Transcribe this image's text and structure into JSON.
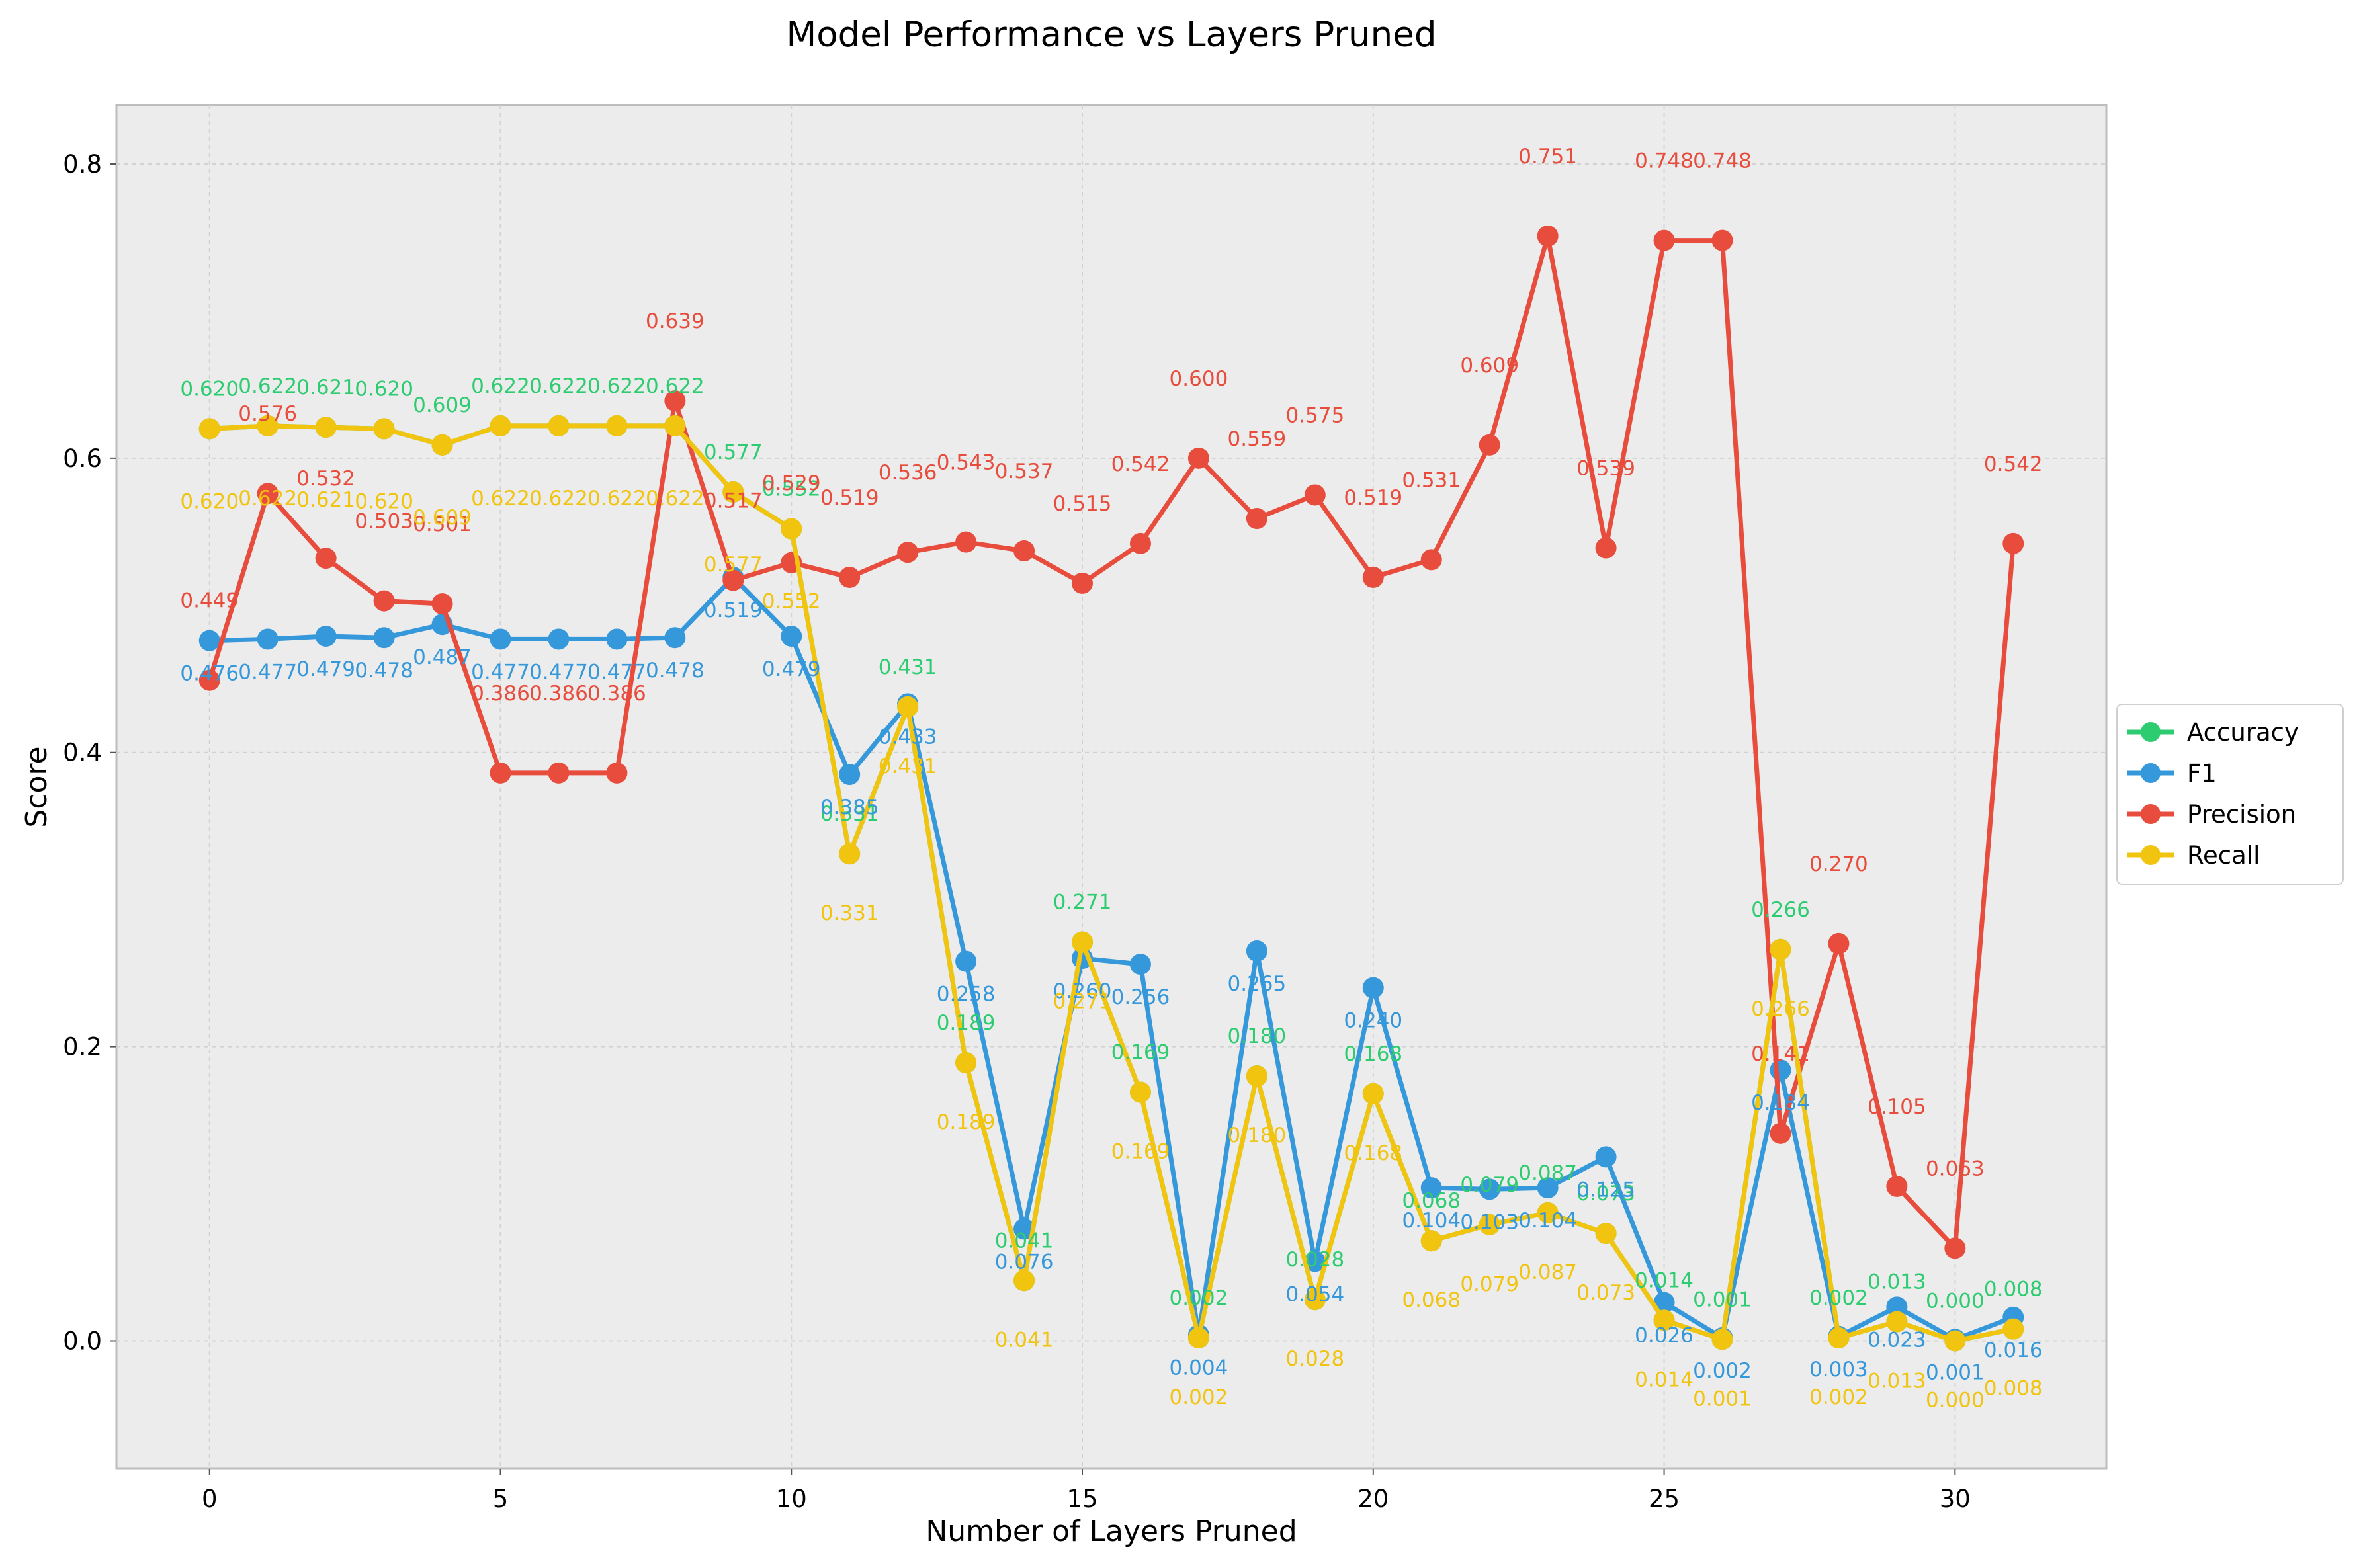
{
  "chart_data": {
    "type": "line",
    "title": "Model Performance vs Layers Pruned",
    "xlabel": "Number of Layers Pruned",
    "ylabel": "Score",
    "xlim": [
      -1.6,
      32.6
    ],
    "ylim": [
      -0.087,
      0.84
    ],
    "xticks": [
      0,
      5,
      10,
      15,
      20,
      25,
      30
    ],
    "yticks": [
      0.0,
      0.2,
      0.4,
      0.6,
      0.8
    ],
    "grid": true,
    "legend_position": "center-right-outside",
    "background": "#ececec",
    "x": [
      0,
      1,
      2,
      3,
      4,
      5,
      6,
      7,
      8,
      9,
      10,
      11,
      12,
      13,
      14,
      15,
      16,
      17,
      18,
      19,
      20,
      21,
      22,
      23,
      24,
      25,
      26,
      27,
      28,
      29,
      30,
      31
    ],
    "series": [
      {
        "name": "Accuracy",
        "color": "#2ecc71",
        "values": [
          0.62,
          0.622,
          0.621,
          0.62,
          0.609,
          0.622,
          0.622,
          0.622,
          0.622,
          0.577,
          0.552,
          0.331,
          0.431,
          0.189,
          0.041,
          0.271,
          0.169,
          0.002,
          0.18,
          0.028,
          0.168,
          0.068,
          0.079,
          0.087,
          0.073,
          0.014,
          0.001,
          0.266,
          0.002,
          0.013,
          0.0,
          0.008
        ],
        "labels": [
          "0.620",
          "0.622",
          "0.621",
          "0.620",
          "0.609",
          "0.622",
          "0.622",
          "0.622",
          "0.622",
          "0.577",
          "0.552",
          "0.331",
          "0.431",
          "0.189",
          "0.041",
          "0.271",
          "0.169",
          "0.002",
          "0.180",
          "0.028",
          "0.168",
          "0.068",
          "0.079",
          "0.087",
          "0.073",
          "0.014",
          "0.001",
          "0.266",
          "0.002",
          "0.013",
          "0.000",
          "0.008"
        ]
      },
      {
        "name": "F1",
        "color": "#3498db",
        "values": [
          0.476,
          0.477,
          0.479,
          0.478,
          0.487,
          0.477,
          0.477,
          0.477,
          0.478,
          0.519,
          0.479,
          0.385,
          0.433,
          0.258,
          0.076,
          0.26,
          0.256,
          0.004,
          0.265,
          0.054,
          0.24,
          0.104,
          0.103,
          0.104,
          0.125,
          0.026,
          0.002,
          0.184,
          0.003,
          0.023,
          0.001,
          0.016
        ],
        "labels": [
          "0.476",
          "0.477",
          "0.479",
          "0.478",
          "0.487",
          "0.477",
          "0.477",
          "0.477",
          "0.478",
          "0.519",
          "0.479",
          "0.385",
          "0.433",
          "0.258",
          "0.076",
          "0.260",
          "0.256",
          "0.004",
          "0.265",
          "0.054",
          "0.240",
          "0.104",
          "0.103",
          "0.104",
          "0.125",
          "0.026",
          "0.002",
          "0.184",
          "0.003",
          "0.023",
          "0.001",
          "0.016"
        ]
      },
      {
        "name": "Precision",
        "color": "#e74c3c",
        "values": [
          0.449,
          0.576,
          0.532,
          0.503,
          0.501,
          0.386,
          0.386,
          0.386,
          0.639,
          0.517,
          0.529,
          0.519,
          0.536,
          0.543,
          0.537,
          0.515,
          0.542,
          0.6,
          0.559,
          0.575,
          0.519,
          0.531,
          0.609,
          0.751,
          0.539,
          0.748,
          0.748,
          0.141,
          0.27,
          0.105,
          0.063,
          0.542
        ],
        "labels": [
          "0.449",
          "0.576",
          "0.532",
          "0.503",
          "0.501",
          "0.386",
          "0.386",
          "0.386",
          "0.639",
          "0.517",
          "0.529",
          "0.519",
          "0.536",
          "0.543",
          "0.537",
          "0.515",
          "0.542",
          "0.600",
          "0.559",
          "0.575",
          "0.519",
          "0.531",
          "0.609",
          "0.751",
          "0.539",
          "0.748",
          "0.748",
          "0.141",
          "0.270",
          "0.105",
          "0.063",
          "0.542"
        ]
      },
      {
        "name": "Recall",
        "color": "#f1c40f",
        "values": [
          0.62,
          0.622,
          0.621,
          0.62,
          0.609,
          0.622,
          0.622,
          0.622,
          0.622,
          0.577,
          0.552,
          0.331,
          0.431,
          0.189,
          0.041,
          0.271,
          0.169,
          0.002,
          0.18,
          0.028,
          0.168,
          0.068,
          0.079,
          0.087,
          0.073,
          0.014,
          0.001,
          0.266,
          0.002,
          0.013,
          0.0,
          0.008
        ],
        "labels": [
          "0.620",
          "0.622",
          "0.621",
          "0.620",
          "0.609",
          "0.622",
          "0.622",
          "0.622",
          "0.622",
          "0.577",
          "0.552",
          "0.331",
          "0.431",
          "0.189",
          "0.041",
          "0.271",
          "0.169",
          "0.002",
          "0.180",
          "0.028",
          "0.168",
          "0.068",
          "0.079",
          "0.087",
          "0.073",
          "0.014",
          "0.001",
          "0.266",
          "0.002",
          "0.013",
          "0.000",
          "0.008"
        ]
      }
    ]
  }
}
